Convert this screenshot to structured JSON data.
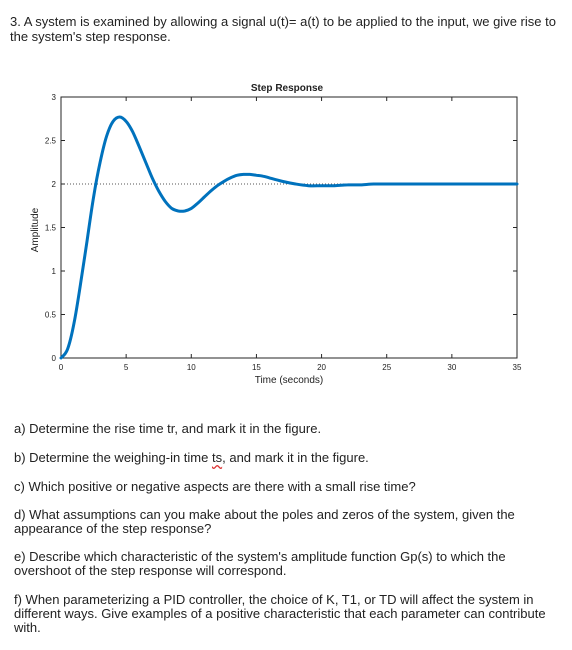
{
  "question": {
    "intro": "3. A system is examined by allowing a signal u(t)= a(t) to be applied to the input, we give rise to the system's step response."
  },
  "chart_data": {
    "type": "line",
    "title": "Step Response",
    "xlabel": "Time (seconds)",
    "ylabel": "Amplitude",
    "xlim": [
      0,
      35
    ],
    "ylim": [
      0,
      3
    ],
    "xticks": [
      0,
      5,
      10,
      15,
      20,
      25,
      30,
      35
    ],
    "yticks": [
      0,
      0.5,
      1,
      1.5,
      2,
      2.5,
      3
    ],
    "xtick_labels": [
      "0",
      "5",
      "10",
      "15",
      "20",
      "25",
      "30",
      "35"
    ],
    "ytick_labels": [
      "0",
      "0.5",
      "1",
      "1.5",
      "2",
      "2.5",
      "3"
    ],
    "grid": false,
    "reference_line": {
      "y": 2,
      "style": "dotted"
    },
    "series": [
      {
        "x": [
          0,
          0.5,
          1,
          1.5,
          2,
          2.5,
          3,
          3.5,
          4,
          4.5,
          5,
          5.5,
          6,
          6.5,
          7,
          7.5,
          8,
          8.5,
          9,
          9.5,
          10,
          10.5,
          11,
          11.5,
          12,
          12.5,
          13,
          13.5,
          14,
          14.5,
          15,
          15.5,
          16,
          17,
          18,
          19,
          20,
          21,
          22,
          23,
          24,
          25,
          26,
          28,
          30,
          32,
          35
        ],
        "y": [
          0,
          0.1,
          0.4,
          0.85,
          1.35,
          1.85,
          2.25,
          2.55,
          2.72,
          2.77,
          2.72,
          2.6,
          2.43,
          2.25,
          2.07,
          1.92,
          1.8,
          1.72,
          1.69,
          1.69,
          1.72,
          1.78,
          1.85,
          1.92,
          1.98,
          2.03,
          2.07,
          2.1,
          2.11,
          2.11,
          2.1,
          2.09,
          2.07,
          2.03,
          2.0,
          1.98,
          1.98,
          1.98,
          1.99,
          1.99,
          2.0,
          2.0,
          2.0,
          2.0,
          2.0,
          2.0,
          2.0
        ],
        "color": "#0072BD"
      }
    ]
  },
  "questions": [
    {
      "pre": "a) Determine the rise time tr, and mark it in the figure.",
      "mark": "",
      "post": ""
    },
    {
      "pre": "b) Determine the weighing-in time ",
      "mark": "ts",
      "post": ", and mark it in the figure."
    },
    {
      "pre": "c) Which positive or negative aspects are there with a small rise time?",
      "mark": "",
      "post": ""
    },
    {
      "pre": "d) What assumptions can you make about the poles and zeros of the system, given the appearance of the step response?",
      "mark": "",
      "post": ""
    },
    {
      "pre": "e) Describe which characteristic of the system's amplitude function Gp(s) to which the overshoot of the step response will correspond.",
      "mark": "",
      "post": ""
    },
    {
      "pre": "f) When parameterizing a PID controller, the choice of K, T1, or TD  will affect the system in different ways.  Give examples of a positive characteristic that each parameter can contribute with.",
      "mark": "",
      "post": ""
    }
  ]
}
